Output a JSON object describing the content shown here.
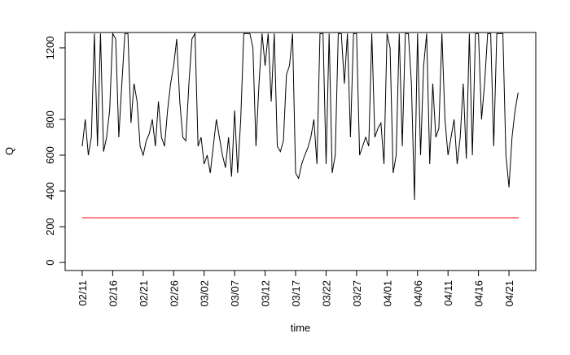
{
  "chart_data": {
    "type": "line",
    "xlabel": "time",
    "ylabel": "Q",
    "xlim": [
      -2.8,
      74.4
    ],
    "ylim": [
      -45,
      1286
    ],
    "xticks": [
      {
        "value": 0,
        "label": "02/11"
      },
      {
        "value": 5,
        "label": "02/16"
      },
      {
        "value": 10,
        "label": "02/21"
      },
      {
        "value": 15,
        "label": "02/26"
      },
      {
        "value": 20,
        "label": "03/02"
      },
      {
        "value": 25,
        "label": "03/07"
      },
      {
        "value": 30,
        "label": "03/12"
      },
      {
        "value": 35,
        "label": "03/17"
      },
      {
        "value": 40,
        "label": "03/22"
      },
      {
        "value": 45,
        "label": "03/27"
      },
      {
        "value": 50,
        "label": "04/01"
      },
      {
        "value": 55,
        "label": "04/06"
      },
      {
        "value": 60,
        "label": "04/11"
      },
      {
        "value": 65,
        "label": "04/16"
      },
      {
        "value": 70,
        "label": "04/21"
      }
    ],
    "yticks": [
      0,
      200,
      400,
      600,
      800,
      1200
    ],
    "series": [
      {
        "color": "#000000",
        "x": [
          0,
          0.5,
          1,
          1.5,
          2,
          2.5,
          3,
          3.5,
          4,
          4.5,
          5,
          5.5,
          6,
          6.5,
          7,
          7.5,
          8,
          8.5,
          9,
          9.5,
          10,
          10.5,
          11,
          11.5,
          12,
          12.5,
          13,
          13.5,
          14,
          14.5,
          15,
          15.5,
          16,
          16.5,
          17,
          17.5,
          18,
          18.5,
          19,
          19.5,
          20,
          20.5,
          21,
          21.5,
          22,
          22.5,
          23,
          23.5,
          24,
          24.5,
          25,
          25.5,
          26,
          26.5,
          27,
          27.5,
          28,
          28.5,
          29,
          29.5,
          30,
          30.5,
          31,
          31.5,
          32,
          32.5,
          33,
          33.5,
          34,
          34.5,
          35,
          35.5,
          36,
          36.5,
          37,
          37.5,
          38,
          38.5,
          39,
          39.5,
          40,
          40.5,
          41,
          41.5,
          42,
          42.5,
          43,
          43.5,
          44,
          44.5,
          45,
          45.5,
          46,
          46.5,
          47,
          47.5,
          48,
          48.5,
          49,
          49.5,
          50,
          50.5,
          51,
          51.5,
          52,
          52.5,
          53,
          53.5,
          54,
          54.5,
          55,
          55.5,
          56,
          56.5,
          57,
          57.5,
          58,
          58.5,
          59,
          59.5,
          60,
          60.5,
          61,
          61.5,
          62,
          62.5,
          63,
          63.5,
          64,
          64.5,
          65,
          65.5,
          66,
          66.5,
          67,
          67.5,
          68,
          68.5,
          69,
          69.5,
          70,
          70.5,
          71,
          71.5
        ],
        "values": [
          650,
          800,
          600,
          700,
          1280,
          650,
          1280,
          620,
          700,
          850,
          1280,
          1250,
          700,
          1000,
          1280,
          1280,
          780,
          1000,
          900,
          650,
          600,
          680,
          720,
          800,
          650,
          900,
          700,
          650,
          850,
          1000,
          1100,
          1250,
          900,
          700,
          680,
          1000,
          1250,
          1280,
          650,
          700,
          550,
          600,
          500,
          650,
          800,
          700,
          600,
          530,
          700,
          480,
          850,
          500,
          800,
          1280,
          1280,
          1280,
          1200,
          650,
          1000,
          1280,
          1100,
          1280,
          900,
          1280,
          650,
          620,
          680,
          1050,
          1100,
          1280,
          500,
          470,
          550,
          600,
          640,
          700,
          800,
          550,
          1280,
          1280,
          550,
          1280,
          500,
          600,
          1280,
          1280,
          1000,
          1280,
          700,
          1280,
          1280,
          600,
          650,
          700,
          650,
          1280,
          700,
          750,
          780,
          550,
          1280,
          1200,
          500,
          600,
          1280,
          650,
          1280,
          1280,
          1000,
          350,
          1280,
          600,
          1100,
          1280,
          550,
          1000,
          700,
          750,
          1280,
          800,
          600,
          700,
          800,
          550,
          700,
          1000,
          580,
          1280,
          600,
          1280,
          1280,
          800,
          1000,
          1280,
          1280,
          650,
          1280,
          1280,
          1280,
          600,
          420,
          700,
          850,
          950
        ]
      },
      {
        "color": "#ff0000",
        "x": [
          0,
          71.6
        ],
        "values": [
          250,
          250
        ]
      }
    ]
  }
}
